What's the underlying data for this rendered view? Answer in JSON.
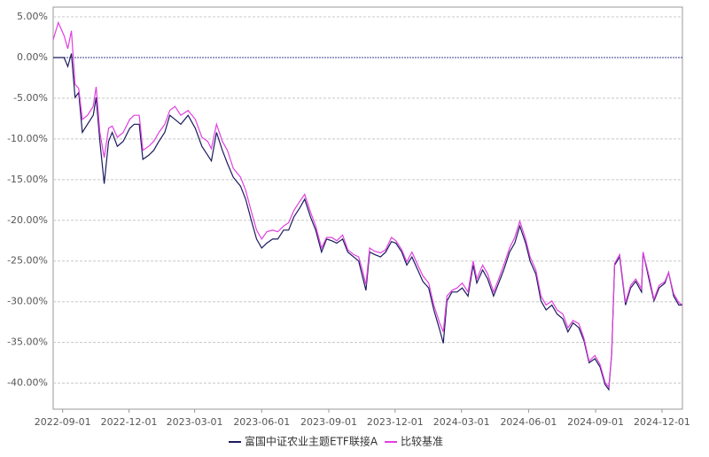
{
  "chart_data": {
    "type": "line",
    "x": [
      "2022-08-19",
      "2022-08-26",
      "2022-09-03",
      "2022-09-08",
      "2022-09-13",
      "2022-09-18",
      "2022-09-23",
      "2022-09-28",
      "2022-10-05",
      "2022-10-13",
      "2022-10-17",
      "2022-10-22",
      "2022-10-28",
      "2022-11-03",
      "2022-11-08",
      "2022-11-15",
      "2022-11-23",
      "2022-12-02",
      "2022-12-08",
      "2022-12-15",
      "2022-12-20",
      "2022-12-28",
      "2023-01-04",
      "2023-01-11",
      "2023-01-19",
      "2023-01-26",
      "2023-02-02",
      "2023-02-10",
      "2023-02-20",
      "2023-03-02",
      "2023-03-11",
      "2023-03-19",
      "2023-03-24",
      "2023-03-31",
      "2023-04-08",
      "2023-04-15",
      "2023-04-23",
      "2023-05-03",
      "2023-05-10",
      "2023-05-18",
      "2023-05-25",
      "2023-06-01",
      "2023-06-08",
      "2023-06-16",
      "2023-06-23",
      "2023-07-01",
      "2023-07-08",
      "2023-07-15",
      "2023-07-23",
      "2023-07-30",
      "2023-08-07",
      "2023-08-14",
      "2023-08-22",
      "2023-08-29",
      "2023-09-05",
      "2023-09-12",
      "2023-09-20",
      "2023-09-27",
      "2023-10-05",
      "2023-10-12",
      "2023-10-17",
      "2023-10-22",
      "2023-10-27",
      "2023-11-03",
      "2023-11-11",
      "2023-11-18",
      "2023-11-26",
      "2023-12-02",
      "2023-12-10",
      "2023-12-17",
      "2023-12-24",
      "2024-01-01",
      "2024-01-08",
      "2024-01-16",
      "2024-01-23",
      "2024-01-31",
      "2024-02-05",
      "2024-02-10",
      "2024-02-17",
      "2024-02-24",
      "2024-03-02",
      "2024-03-10",
      "2024-03-17",
      "2024-03-22",
      "2024-03-30",
      "2024-04-06",
      "2024-04-14",
      "2024-04-21",
      "2024-04-28",
      "2024-05-06",
      "2024-05-13",
      "2024-05-20",
      "2024-05-28",
      "2024-06-03",
      "2024-06-11",
      "2024-06-18",
      "2024-06-25",
      "2024-07-03",
      "2024-07-10",
      "2024-07-18",
      "2024-07-25",
      "2024-08-01",
      "2024-08-09",
      "2024-08-16",
      "2024-08-23",
      "2024-08-31",
      "2024-09-07",
      "2024-09-14",
      "2024-09-19",
      "2024-09-23",
      "2024-09-27",
      "2024-10-04",
      "2024-10-12",
      "2024-10-19",
      "2024-10-26",
      "2024-11-03",
      "2024-11-05",
      "2024-11-13",
      "2024-11-20",
      "2024-11-27",
      "2024-12-05",
      "2024-12-10",
      "2024-12-17",
      "2024-12-24",
      "2024-12-29"
    ],
    "series": [
      {
        "name": "富国中证农业主题ETF联接A",
        "color": "#1a1a5e",
        "values": [
          0,
          0,
          0,
          -1.1,
          0.5,
          -4.9,
          -4.3,
          -9.2,
          -8.2,
          -7.1,
          -4.9,
          -10.3,
          -15.5,
          -10.3,
          -9.2,
          -10.9,
          -10.3,
          -8.7,
          -8.2,
          -8.2,
          -12.5,
          -12.0,
          -11.4,
          -10.3,
          -9.2,
          -7.1,
          -7.6,
          -8.2,
          -7.1,
          -8.7,
          -10.9,
          -12.0,
          -12.7,
          -9.2,
          -11.4,
          -13.0,
          -14.7,
          -15.8,
          -17.4,
          -20.1,
          -22.3,
          -23.4,
          -22.8,
          -22.3,
          -22.3,
          -21.2,
          -21.2,
          -19.6,
          -18.5,
          -17.4,
          -19.6,
          -21.2,
          -23.9,
          -22.3,
          -22.5,
          -22.8,
          -22.3,
          -23.9,
          -24.5,
          -25.0,
          -26.8,
          -28.6,
          -23.9,
          -24.2,
          -24.5,
          -23.9,
          -22.6,
          -22.8,
          -23.9,
          -25.5,
          -24.5,
          -26.1,
          -27.5,
          -28.3,
          -31.0,
          -33.4,
          -35.1,
          -29.9,
          -28.8,
          -28.8,
          -28.3,
          -29.3,
          -25.5,
          -27.7,
          -26.1,
          -27.2,
          -29.3,
          -27.7,
          -26.1,
          -23.9,
          -22.8,
          -20.7,
          -22.8,
          -25.0,
          -26.6,
          -29.9,
          -31.0,
          -30.4,
          -31.5,
          -32.1,
          -33.7,
          -32.6,
          -33.2,
          -34.8,
          -37.5,
          -37.0,
          -38.0,
          -40.2,
          -40.8,
          -36.4,
          -25.5,
          -24.5,
          -30.4,
          -28.3,
          -27.5,
          -28.8,
          -23.9,
          -27.2,
          -29.9,
          -28.3,
          -27.7,
          -26.4,
          -29.3,
          -30.4,
          -30.4
        ]
      },
      {
        "name": "比较基准",
        "color": "#e040e0",
        "values": [
          2.2,
          4.3,
          2.7,
          1.1,
          3.3,
          -3.3,
          -3.8,
          -7.6,
          -7.1,
          -6.0,
          -3.6,
          -9.2,
          -12.3,
          -8.7,
          -8.4,
          -9.8,
          -9.2,
          -7.6,
          -7.1,
          -7.1,
          -11.4,
          -10.9,
          -10.3,
          -9.2,
          -8.2,
          -6.5,
          -6.0,
          -7.1,
          -6.5,
          -7.6,
          -9.8,
          -10.3,
          -11.2,
          -8.2,
          -10.3,
          -11.4,
          -13.6,
          -14.7,
          -16.3,
          -19.0,
          -21.2,
          -22.3,
          -21.4,
          -21.2,
          -21.4,
          -20.7,
          -20.3,
          -18.8,
          -17.7,
          -16.8,
          -19.0,
          -20.7,
          -23.4,
          -22.1,
          -22.1,
          -22.5,
          -21.8,
          -23.6,
          -24.2,
          -24.5,
          -26.1,
          -27.9,
          -23.4,
          -23.8,
          -24.0,
          -23.6,
          -22.1,
          -22.5,
          -23.6,
          -25.1,
          -23.9,
          -25.5,
          -26.8,
          -27.7,
          -30.4,
          -32.6,
          -33.7,
          -29.3,
          -28.6,
          -28.3,
          -27.7,
          -28.8,
          -25.0,
          -27.2,
          -25.5,
          -26.6,
          -28.8,
          -27.2,
          -25.5,
          -23.4,
          -22.1,
          -20.1,
          -22.3,
          -24.5,
          -26.1,
          -29.3,
          -30.4,
          -29.9,
          -31.0,
          -31.5,
          -33.2,
          -32.3,
          -32.7,
          -34.5,
          -37.3,
          -36.6,
          -37.7,
          -39.9,
          -40.5,
          -36.4,
          -25.3,
          -24.2,
          -30.1,
          -28.0,
          -27.2,
          -28.4,
          -23.9,
          -26.8,
          -29.7,
          -28.0,
          -27.5,
          -26.4,
          -29.0,
          -30.1,
          -30.4
        ]
      }
    ],
    "xlim": [
      "2022-08-19",
      "2024-12-29"
    ],
    "xticks": [
      "2022-09-01",
      "2022-12-01",
      "2023-03-01",
      "2023-06-01",
      "2023-09-01",
      "2023-12-01",
      "2024-03-01",
      "2024-06-01",
      "2024-09-01",
      "2024-12-01"
    ],
    "ylim": [
      -43.2,
      6.2
    ],
    "yticks": [
      {
        "value": 5,
        "label": "5.00%"
      },
      {
        "value": 0,
        "label": "0.00%"
      },
      {
        "value": -5,
        "label": "-5.00%"
      },
      {
        "value": -10,
        "label": "-10.00%"
      },
      {
        "value": -15,
        "label": "-15.00%"
      },
      {
        "value": -20,
        "label": "-20.00%"
      },
      {
        "value": -25,
        "label": "-25.00%"
      },
      {
        "value": -30,
        "label": "-30.00%"
      },
      {
        "value": -35,
        "label": "-35.00%"
      },
      {
        "value": -40,
        "label": "-40.00%"
      }
    ],
    "grid": true,
    "legend": "bottom"
  }
}
